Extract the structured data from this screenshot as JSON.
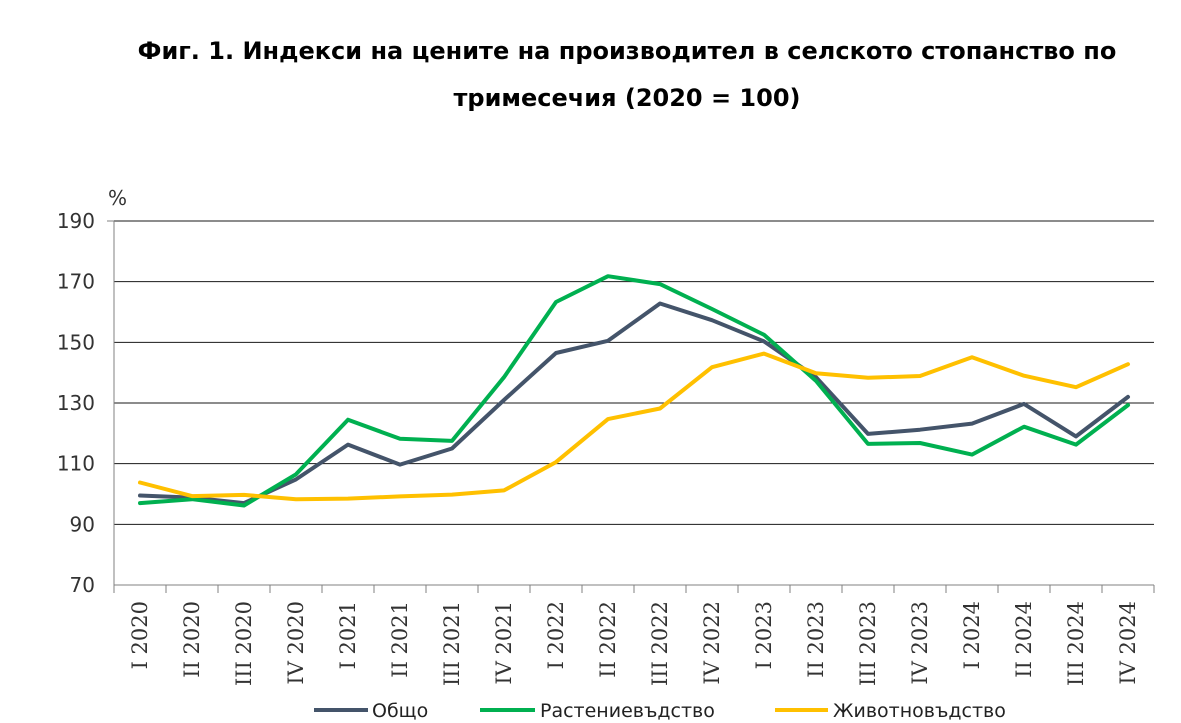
{
  "chart_data": {
    "type": "line",
    "title_line1": "Фиг. 1. Индекси на цените на производител в селското стопанство по",
    "title_line2": "тримесечия (2020 = 100)",
    "unit_label": "%",
    "ylim": [
      70,
      190
    ],
    "yticks": [
      70,
      90,
      110,
      130,
      150,
      170,
      190
    ],
    "grid": true,
    "legend_position": "bottom",
    "categories": [
      "I 2020",
      "II 2020",
      "III 2020",
      "IV 2020",
      "I 2021",
      "II 2021",
      "III 2021",
      "IV 2021",
      "I 2022",
      "II 2022",
      "III 2022",
      "IV 2022",
      "I 2023",
      "II 2023",
      "III 2023",
      "IV 2023",
      "I 2024",
      "II 2024",
      "III 2024",
      "IV 2024"
    ],
    "series": [
      {
        "name": "Общо",
        "color": "#44546a",
        "values": [
          99.5,
          98.8,
          97.0,
          104.8,
          116.3,
          109.7,
          115.0,
          131.0,
          146.5,
          150.5,
          162.8,
          157.3,
          150.3,
          138.5,
          119.8,
          121.2,
          123.2,
          129.7,
          119.0,
          132.0
        ]
      },
      {
        "name": "Растениевъдство",
        "color": "#00b050",
        "values": [
          97.0,
          98.3,
          96.2,
          106.5,
          124.5,
          118.2,
          117.5,
          138.5,
          163.3,
          171.8,
          169.2,
          161.0,
          152.5,
          137.3,
          116.5,
          116.8,
          113.0,
          122.2,
          116.3,
          129.3
        ]
      },
      {
        "name": "Животновъдство",
        "color": "#ffc000",
        "values": [
          103.8,
          99.3,
          99.7,
          98.3,
          98.5,
          99.2,
          99.8,
          101.2,
          110.5,
          124.7,
          128.2,
          141.8,
          146.3,
          139.8,
          138.3,
          138.9,
          145.1,
          139.0,
          135.2,
          142.8
        ]
      }
    ]
  }
}
